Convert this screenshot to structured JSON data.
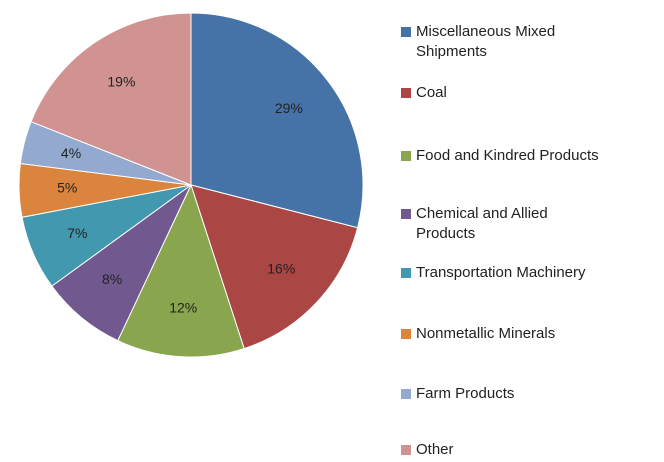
{
  "chart_data": {
    "type": "pie",
    "categories": [
      "Miscellaneous Mixed Shipments",
      "Coal",
      "Food and Kindred Products",
      "Chemical and Allied Products",
      "Transportation Machinery",
      "Nonmetallic Minerals",
      "Farm Products",
      "Other"
    ],
    "values": [
      29,
      16,
      12,
      8,
      7,
      5,
      4,
      19
    ],
    "value_labels": [
      "29%",
      "16%",
      "12%",
      "8%",
      "7%",
      "5%",
      "4%",
      "19%"
    ],
    "colors": [
      "#4572a7",
      "#aa4643",
      "#89a54e",
      "#71588f",
      "#4198af",
      "#db843d",
      "#93a9cf",
      "#d19392"
    ],
    "legend": "right"
  }
}
